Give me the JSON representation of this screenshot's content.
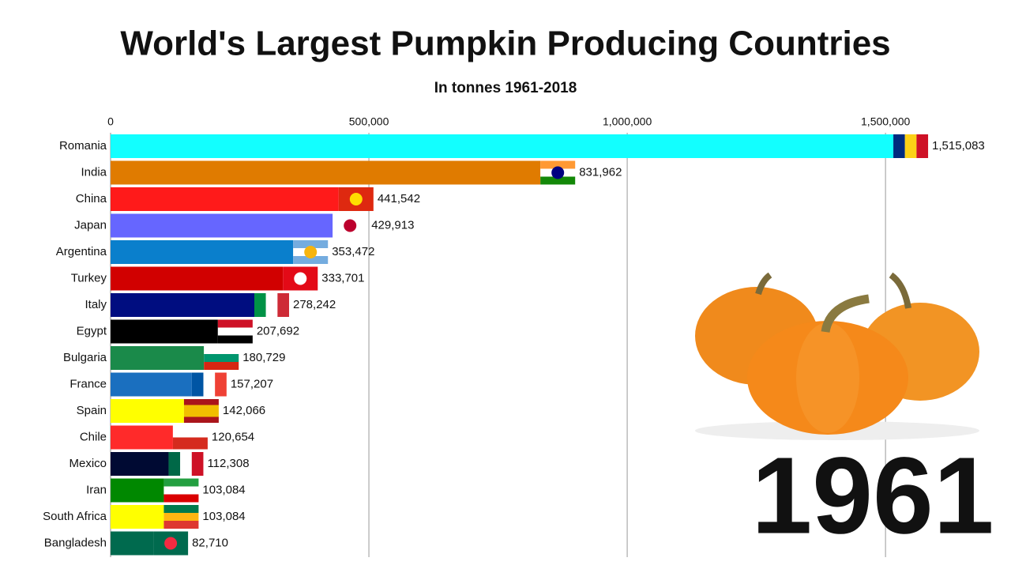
{
  "chart_data": {
    "type": "bar",
    "orientation": "horizontal",
    "title": "World's Largest Pumpkin Producing Countries",
    "subtitle": "In tonnes 1961-2018",
    "year": "1961",
    "categories": [
      "Romania",
      "India",
      "China",
      "Japan",
      "Argentina",
      "Turkey",
      "Italy",
      "Egypt",
      "Bulgaria",
      "France",
      "Spain",
      "Chile",
      "Mexico",
      "Iran",
      "South Africa",
      "Bangladesh"
    ],
    "values": [
      1515083,
      831962,
      441542,
      429913,
      353472,
      333701,
      278242,
      207692,
      180729,
      157207,
      142066,
      120654,
      112308,
      103084,
      103084,
      82710
    ],
    "value_labels": [
      "1,515,083",
      "831,962",
      "441,542",
      "429,913",
      "353,472",
      "333,701",
      "278,242",
      "207,692",
      "180,729",
      "157,207",
      "142,066",
      "120,654",
      "112,308",
      "103,084",
      "103,084",
      "82,710"
    ],
    "colors": [
      "#12ffff",
      "#e07b00",
      "#ff1a1a",
      "#6666ff",
      "#0a7fcc",
      "#d10000",
      "#000d80",
      "#000000",
      "#1a8a4a",
      "#1a6fbf",
      "#ffff00",
      "#ff2a2a",
      "#000a33",
      "#008800",
      "#ffff00",
      "#006a4e"
    ],
    "xlim": [
      0,
      1700000
    ],
    "xticks": [
      0,
      {
        "value": 500000,
        "label": "500,000"
      },
      {
        "value": 1000000,
        "label": "1,000,000"
      },
      {
        "value": 1500000,
        "label": "1,500,000"
      }
    ],
    "grid": true
  }
}
